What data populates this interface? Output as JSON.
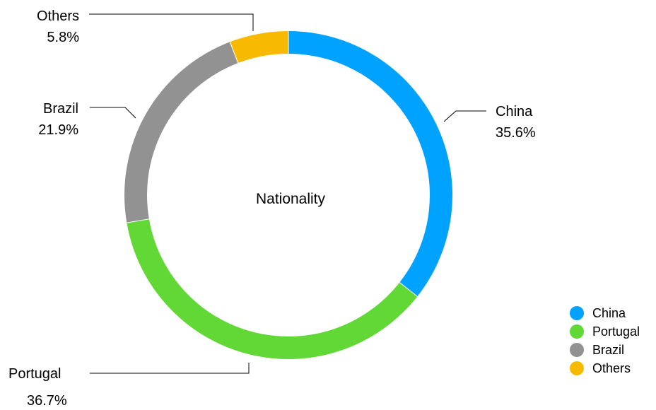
{
  "chart_data": {
    "type": "pie",
    "donut": true,
    "center_label": "Nationality",
    "slices": [
      {
        "label": "China",
        "value": 35.6,
        "display": "35.6%",
        "color": "#00A2FF"
      },
      {
        "label": "Portugal",
        "value": 36.7,
        "display": "36.7%",
        "color": "#61D836"
      },
      {
        "label": "Brazil",
        "value": 21.9,
        "display": "21.9%",
        "color": "#929292"
      },
      {
        "label": "Others",
        "value": 5.8,
        "display": "5.8%",
        "color": "#F8BA00"
      }
    ],
    "legend_placement": "bottom-right"
  }
}
